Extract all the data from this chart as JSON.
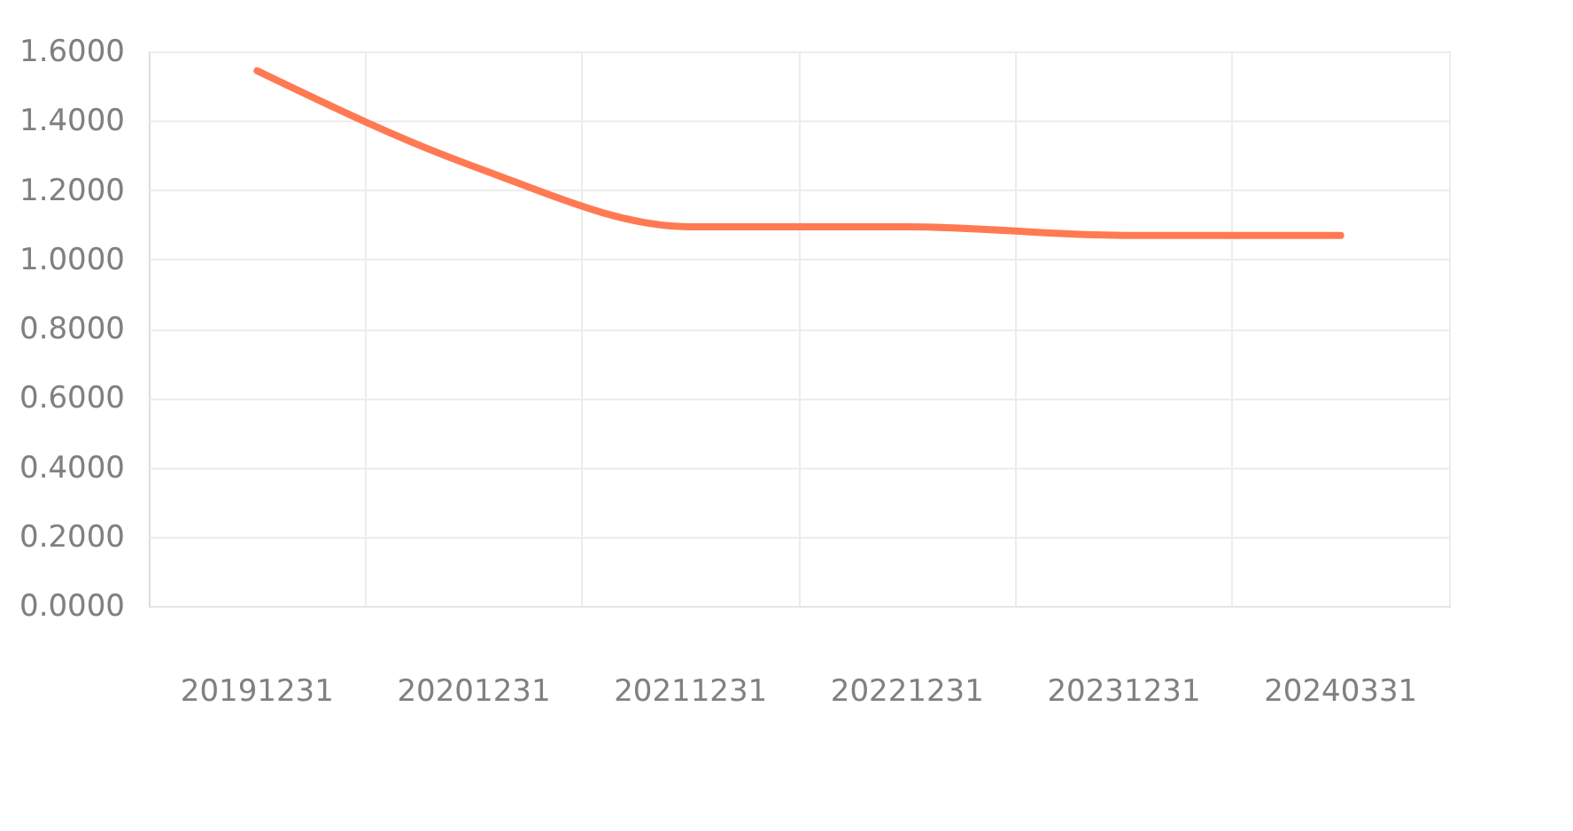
{
  "chart_data": {
    "type": "line",
    "categories": [
      "20191231",
      "20201231",
      "20211231",
      "20221231",
      "20231231",
      "20240331"
    ],
    "series": [
      {
        "color": "#ff7a52",
        "values": [
          1.544,
          1.268,
          1.094,
          1.094,
          1.069,
          1.069
        ]
      }
    ],
    "ylim": [
      0,
      1.6
    ],
    "yticks": [
      {
        "value": 0,
        "label": "0.0000"
      },
      {
        "value": 0.2,
        "label": "0.2000"
      },
      {
        "value": 0.4,
        "label": "0.4000"
      },
      {
        "value": 0.6,
        "label": "0.6000"
      },
      {
        "value": 0.8,
        "label": "0.8000"
      },
      {
        "value": 1.0,
        "label": "1.0000"
      },
      {
        "value": 1.2,
        "label": "1.2000"
      },
      {
        "value": 1.4,
        "label": "1.4000"
      },
      {
        "value": 1.6,
        "label": "1.6000"
      }
    ],
    "grid": true,
    "legend": false,
    "marker": "none",
    "line_style": "solid"
  }
}
